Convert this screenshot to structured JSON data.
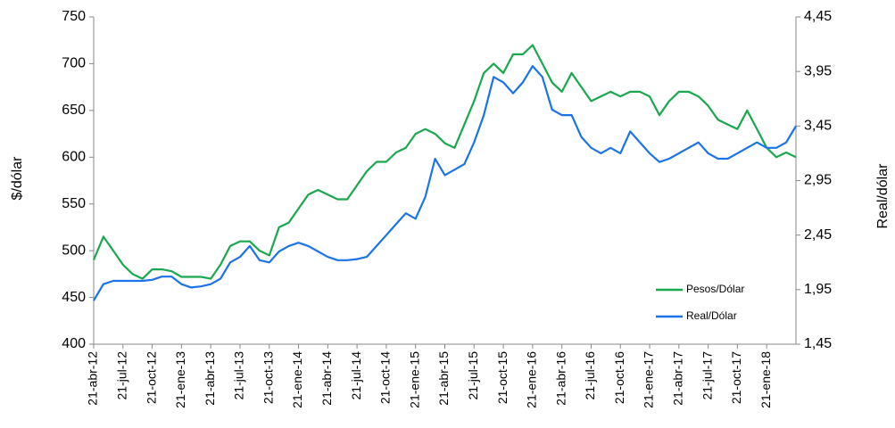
{
  "chart_data": {
    "type": "line",
    "y_label": "$/dólar",
    "y2_label": "Real/dólar",
    "x": [
      "21-abr-12",
      "21-may-12",
      "21-jun-12",
      "21-jul-12",
      "21-ago-12",
      "21-sep-12",
      "21-oct-12",
      "21-nov-12",
      "21-dic-12",
      "21-ene-13",
      "21-feb-13",
      "21-mar-13",
      "21-abr-13",
      "21-may-13",
      "21-jun-13",
      "21-jul-13",
      "21-ago-13",
      "21-sep-13",
      "21-oct-13",
      "21-nov-13",
      "21-dic-13",
      "21-ene-14",
      "21-feb-14",
      "21-mar-14",
      "21-abr-14",
      "21-may-14",
      "21-jun-14",
      "21-jul-14",
      "21-ago-14",
      "21-sep-14",
      "21-oct-14",
      "21-nov-14",
      "21-dic-14",
      "21-ene-15",
      "21-feb-15",
      "21-mar-15",
      "21-abr-15",
      "21-may-15",
      "21-jun-15",
      "21-jul-15",
      "21-ago-15",
      "21-sep-15",
      "21-oct-15",
      "21-nov-15",
      "21-dic-15",
      "21-ene-16",
      "21-feb-16",
      "21-mar-16",
      "21-abr-16",
      "21-may-16",
      "21-jun-16",
      "21-jul-16",
      "21-ago-16",
      "21-sep-16",
      "21-oct-16",
      "21-nov-16",
      "21-dic-16",
      "21-ene-17",
      "21-feb-17",
      "21-mar-17",
      "21-abr-17",
      "21-may-17",
      "21-jun-17",
      "21-jul-17",
      "21-ago-17",
      "21-sep-17",
      "21-oct-17",
      "21-nov-17",
      "21-dic-17",
      "21-ene-18",
      "21-feb-18",
      "21-mar-18",
      "21-abr-18"
    ],
    "xticks": [
      "21-abr-12",
      "21-jul-12",
      "21-oct-12",
      "21-ene-13",
      "21-abr-13",
      "21-jul-13",
      "21-oct-13",
      "21-ene-14",
      "21-abr-14",
      "21-jul-14",
      "21-oct-14",
      "21-ene-15",
      "21-abr-15",
      "21-jul-15",
      "21-oct-15",
      "21-ene-16",
      "21-abr-16",
      "21-jul-16",
      "21-oct-16",
      "21-ene-17",
      "21-abr-17",
      "21-jul-17",
      "21-oct-17",
      "21-ene-18"
    ],
    "ylim": [
      400,
      750
    ],
    "yticks": [
      400,
      450,
      500,
      550,
      600,
      650,
      700,
      750
    ],
    "y2lim": [
      1.45,
      4.45
    ],
    "y2ticks": [
      {
        "value": 1.45,
        "label": "1,45"
      },
      {
        "value": 1.95,
        "label": "1,95"
      },
      {
        "value": 2.45,
        "label": "2,45"
      },
      {
        "value": 2.95,
        "label": "2,95"
      },
      {
        "value": 3.45,
        "label": "3,45"
      },
      {
        "value": 3.95,
        "label": "3,95"
      },
      {
        "value": 4.45,
        "label": "4,45"
      }
    ],
    "legend": "lower right",
    "series": [
      {
        "name": "Pesos/Dólar",
        "color": "#1aa84e",
        "axis": "y",
        "values": [
          490,
          515,
          500,
          485,
          475,
          470,
          480,
          480,
          478,
          472,
          472,
          472,
          470,
          485,
          505,
          510,
          510,
          500,
          495,
          525,
          530,
          545,
          560,
          565,
          560,
          555,
          555,
          570,
          585,
          595,
          595,
          605,
          610,
          625,
          630,
          625,
          615,
          610,
          635,
          660,
          690,
          700,
          690,
          710,
          710,
          720,
          700,
          680,
          670,
          690,
          675,
          660,
          665,
          670,
          665,
          670,
          670,
          665,
          645,
          660,
          670,
          670,
          665,
          655,
          640,
          635,
          630,
          650,
          630,
          610,
          600,
          605,
          600
        ]
      },
      {
        "name": "Real/Dólar",
        "color": "#1a73e8",
        "axis": "y2",
        "values": [
          1.85,
          2.0,
          2.03,
          2.03,
          2.03,
          2.03,
          2.04,
          2.07,
          2.07,
          2.0,
          1.97,
          1.98,
          2.0,
          2.05,
          2.2,
          2.25,
          2.35,
          2.22,
          2.2,
          2.3,
          2.35,
          2.38,
          2.35,
          2.3,
          2.25,
          2.22,
          2.22,
          2.23,
          2.25,
          2.35,
          2.45,
          2.55,
          2.65,
          2.6,
          2.8,
          3.15,
          3.0,
          3.05,
          3.1,
          3.3,
          3.55,
          3.9,
          3.85,
          3.75,
          3.85,
          4.0,
          3.9,
          3.6,
          3.55,
          3.55,
          3.35,
          3.25,
          3.2,
          3.25,
          3.2,
          3.4,
          3.3,
          3.2,
          3.12,
          3.15,
          3.2,
          3.25,
          3.3,
          3.2,
          3.15,
          3.15,
          3.2,
          3.25,
          3.3,
          3.25,
          3.25,
          3.3,
          3.45
        ]
      }
    ]
  }
}
